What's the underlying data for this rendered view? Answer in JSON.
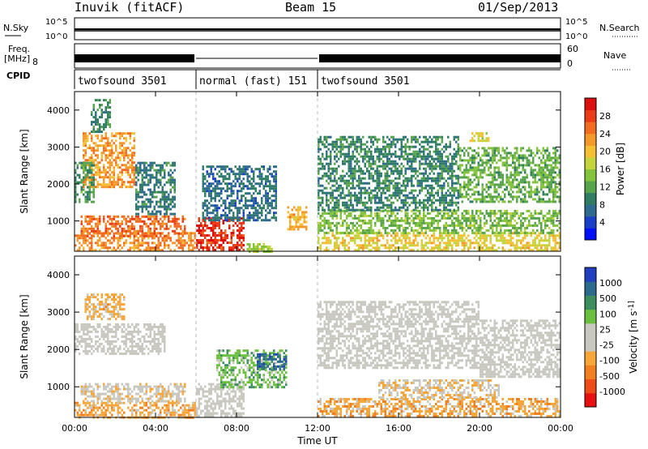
{
  "header": {
    "station": "Inuvik (fitACF)",
    "beam": "Beam 15",
    "date": "01/Sep/2013"
  },
  "top_panels": {
    "nsky_label": "N.Sky",
    "nsky_ticks": [
      "10^5",
      "10^0"
    ],
    "nsearch_label": "N.Search",
    "nsearch_ticks": [
      "10^5",
      "10^0"
    ],
    "freq_label": "Freq.",
    "freq_unit": "[MHz]",
    "freq_tick": "8",
    "nave_label": "Nave",
    "nave_ticks": [
      "60",
      "0"
    ],
    "cpid_label": "CPID",
    "cpid_segments": [
      {
        "label": "twofsound 3501",
        "start_h": 0,
        "end_h": 6
      },
      {
        "label": "normal (fast) 151",
        "start_h": 6,
        "end_h": 12
      },
      {
        "label": "twofsound 3501",
        "start_h": 12,
        "end_h": 24
      }
    ]
  },
  "chart_data": [
    {
      "type": "heatmap",
      "title": "",
      "xlabel": "",
      "ylabel": "Slant Range [km]",
      "xlim": [
        0,
        24
      ],
      "ylim": [
        180,
        4500
      ],
      "yticks": [
        "1000",
        "2000",
        "3000",
        "4000"
      ],
      "colorbar": {
        "label": "Power [dB]",
        "ticks": [
          "28",
          "24",
          "20",
          "16",
          "12",
          "8",
          "4"
        ],
        "range": [
          0,
          30
        ],
        "colors": [
          "#0010ff",
          "#1a3fc8",
          "#2f6a8f",
          "#2f7e63",
          "#58a44d",
          "#84c43d",
          "#c4d43c",
          "#f4c035",
          "#f49a2c",
          "#f26c22",
          "#ea3c16",
          "#dd1010"
        ]
      },
      "patches": [
        {
          "t0": 0.0,
          "t1": 6.0,
          "r0": 200,
          "r1": 700,
          "value": 22
        },
        {
          "t0": 0.3,
          "t1": 5.5,
          "r0": 600,
          "r1": 1150,
          "value": 24
        },
        {
          "t0": 0.4,
          "t1": 3.0,
          "r0": 1900,
          "r1": 3400,
          "value": 21
        },
        {
          "t0": 0.8,
          "t1": 1.8,
          "r0": 3400,
          "r1": 4300,
          "value": 9
        },
        {
          "t0": 0.0,
          "t1": 1.0,
          "r0": 1500,
          "r1": 2600,
          "value": 10
        },
        {
          "t0": 3.0,
          "t1": 5.0,
          "r0": 1200,
          "r1": 2600,
          "value": 8
        },
        {
          "t0": 6.0,
          "t1": 8.4,
          "r0": 200,
          "r1": 1100,
          "value": 27
        },
        {
          "t0": 6.3,
          "t1": 10.0,
          "r0": 1000,
          "r1": 2500,
          "value": 7
        },
        {
          "t0": 8.5,
          "t1": 9.8,
          "r0": 200,
          "r1": 400,
          "value": 15
        },
        {
          "t0": 10.5,
          "t1": 11.5,
          "r0": 800,
          "r1": 1400,
          "value": 20
        },
        {
          "t0": 12.0,
          "t1": 24.0,
          "r0": 200,
          "r1": 700,
          "value": 18
        },
        {
          "t0": 12.0,
          "t1": 24.0,
          "r0": 700,
          "r1": 1300,
          "value": 13
        },
        {
          "t0": 12.0,
          "t1": 19.0,
          "r0": 1300,
          "r1": 3300,
          "value": 9
        },
        {
          "t0": 19.0,
          "t1": 24.0,
          "r0": 1500,
          "r1": 3000,
          "value": 12
        },
        {
          "t0": 19.5,
          "t1": 20.5,
          "r0": 3200,
          "r1": 3400,
          "value": 17
        }
      ]
    },
    {
      "type": "heatmap",
      "title": "",
      "xlabel": "Time UT",
      "ylabel": "Slant Range [km]",
      "xlim": [
        0,
        24
      ],
      "ylim": [
        180,
        4500
      ],
      "yticks": [
        "1000",
        "2000",
        "3000",
        "4000"
      ],
      "xticks": [
        "00:00",
        "04:00",
        "08:00",
        "12:00",
        "16:00",
        "20:00",
        "00:00"
      ],
      "colorbar": {
        "label": "Velocity [m s^-1]",
        "ticks": [
          "1000",
          "500",
          "100",
          "25",
          "-25",
          "-100",
          "-500",
          "-1000"
        ],
        "range": [
          -1000,
          1000
        ],
        "colors": [
          "#e81010",
          "#ee4c18",
          "#f27f22",
          "#f7a63a",
          "#c8c8c0",
          "#c8c8c0",
          "#6cc040",
          "#3c8e5e",
          "#2c6a8e",
          "#2040c0"
        ]
      },
      "patches": [
        {
          "t0": 0.0,
          "t1": 6.0,
          "r0": 200,
          "r1": 600,
          "value": -300
        },
        {
          "t0": 0.3,
          "t1": 5.5,
          "r0": 600,
          "r1": 1100,
          "value": -120
        },
        {
          "t0": 0.5,
          "t1": 2.5,
          "r0": 2800,
          "r1": 3500,
          "value": -250
        },
        {
          "t0": 0.0,
          "t1": 4.5,
          "r0": 1900,
          "r1": 2700,
          "value": 0
        },
        {
          "t0": 6.0,
          "t1": 8.4,
          "r0": 200,
          "r1": 1100,
          "value": 0
        },
        {
          "t0": 7.0,
          "t1": 10.5,
          "r0": 1000,
          "r1": 2000,
          "value": 300
        },
        {
          "t0": 9.0,
          "t1": 10.5,
          "r0": 1500,
          "r1": 1900,
          "value": 700
        },
        {
          "t0": 12.0,
          "t1": 24.0,
          "r0": 200,
          "r1": 700,
          "value": -300
        },
        {
          "t0": 12.0,
          "t1": 20.0,
          "r0": 1500,
          "r1": 3300,
          "value": 0
        },
        {
          "t0": 15.0,
          "t1": 21.0,
          "r0": 700,
          "r1": 1200,
          "value": -150
        },
        {
          "t0": 20.0,
          "t1": 24.0,
          "r0": 1300,
          "r1": 2800,
          "value": 0
        }
      ]
    }
  ]
}
